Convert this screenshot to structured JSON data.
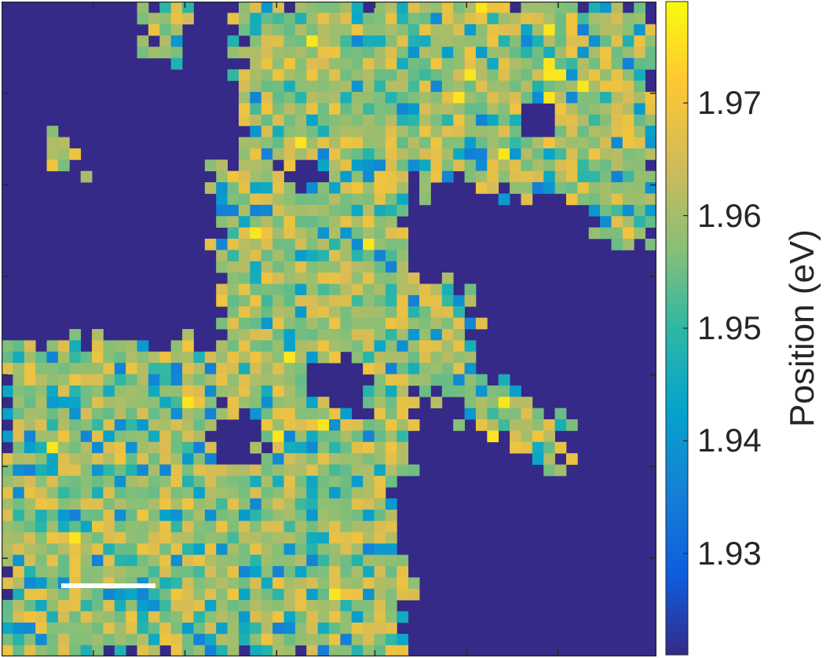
{
  "chart_data": {
    "type": "heatmap",
    "colormap": "parula",
    "background_color": "#352a87",
    "colorbar": {
      "label": "Position (eV)",
      "range": [
        1.921,
        1.979
      ],
      "ticks": [
        1.93,
        1.94,
        1.95,
        1.96,
        1.97
      ],
      "tick_labels": [
        "1.93",
        "1.94",
        "1.95",
        "1.96",
        "1.97"
      ]
    },
    "grid": {
      "rows": 58,
      "cols": 58
    },
    "value_range_in_regions": [
      1.935,
      1.972
    ],
    "scale_bar": {
      "color": "#ffffff",
      "label": ""
    },
    "axis_ticks": "unlabeled"
  }
}
